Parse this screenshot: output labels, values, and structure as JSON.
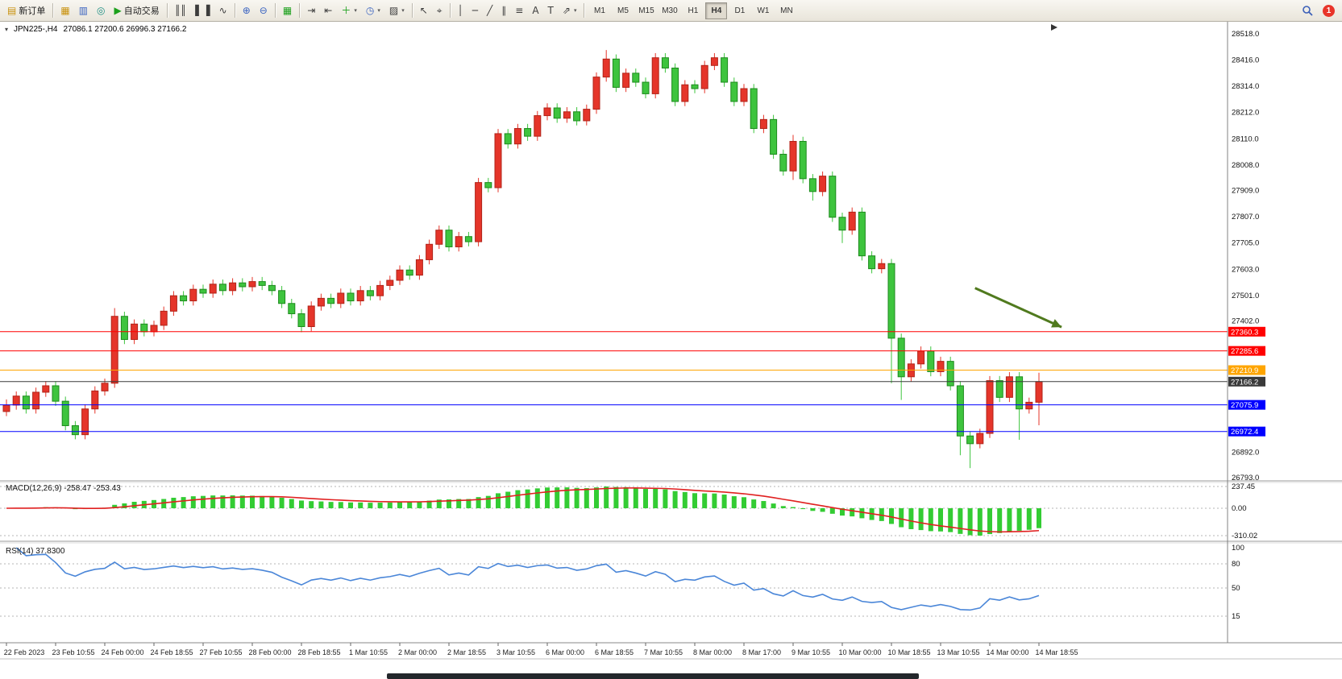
{
  "toolbar": {
    "new_order_label": "新订单",
    "autotrading_label": "自动交易",
    "timeframes": [
      "M1",
      "M5",
      "M15",
      "M30",
      "H1",
      "H4",
      "D1",
      "W1",
      "MN"
    ],
    "active_timeframe": "H4",
    "badge_count": "1",
    "icons": {
      "new_order": "▤",
      "market_watch": "▦",
      "data_window": "▥",
      "navigator": "◎",
      "autotrading_play": "▶",
      "chart_bars": "║║",
      "chart_candles": "▌▐",
      "chart_line": "∿",
      "zoom_in": "⊕",
      "zoom_out": "⊖",
      "tile_windows": "▦",
      "auto_scroll": "⇥",
      "chart_shift": "⇤",
      "add_indicator": "＋",
      "periods": "◷",
      "templates": "▨",
      "cursor": "↖",
      "crosshair": "⌖",
      "vline": "│",
      "hline": "─",
      "trendline": "╱",
      "channel": "∥",
      "fibonacci": "≡",
      "text": "A",
      "text_label": "T",
      "shapes": "⇗",
      "dropdown": "▾",
      "one_click": "▾"
    }
  },
  "chart": {
    "symbol_label": "JPN225-,H4",
    "ohlc_text": "27086.1 27200.6 26996.3 27166.2",
    "price_axis": {
      "top": 28518.0,
      "bottom": 26793.0,
      "labels": [
        "28518.0",
        "28416.0",
        "28314.0",
        "28212.0",
        "28110.0",
        "28008.0",
        "27909.0",
        "27807.0",
        "27705.0",
        "27603.0",
        "27501.0",
        "27402.0",
        "27300.0",
        "27198.0",
        "27096.0",
        "26994.0",
        "26892.0",
        "26793.0"
      ]
    },
    "colors": {
      "up": "#e5352a",
      "up_border": "#b02318",
      "down": "#3ec43e",
      "down_border": "#1d8a1d"
    },
    "levels": [
      {
        "price": 27360.3,
        "label": "27360.3",
        "color": "#ff0000"
      },
      {
        "price": 27285.6,
        "label": "27285.6",
        "color": "#ff0000"
      },
      {
        "price": 27210.9,
        "label": "27210.9",
        "color": "#ffa500"
      },
      {
        "price": 27166.2,
        "label": "27166.2",
        "color": "#3a3a3a"
      },
      {
        "price": 27075.9,
        "label": "27075.9",
        "color": "#0000ff"
      },
      {
        "price": 26972.4,
        "label": "26972.4",
        "color": "#0000ff"
      }
    ],
    "arrow": {
      "from_bar": 98.5,
      "from_price": 27530,
      "to_bar": 107.3,
      "to_price": 27378,
      "color": "#507a1e"
    },
    "candles": [
      [
        27050,
        27097,
        27032,
        27075
      ],
      [
        27075,
        27128,
        27057,
        27110
      ],
      [
        27110,
        27128,
        27042,
        27060
      ],
      [
        27060,
        27143,
        27042,
        27125
      ],
      [
        27125,
        27168,
        27107,
        27150
      ],
      [
        27150,
        27168,
        27072,
        27090
      ],
      [
        27090,
        27108,
        26977,
        26995
      ],
      [
        26995,
        27013,
        26942,
        26960
      ],
      [
        26960,
        27078,
        26942,
        27060
      ],
      [
        27060,
        27148,
        27042,
        27130
      ],
      [
        27130,
        27178,
        27112,
        27160
      ],
      [
        27160,
        27452,
        27142,
        27420
      ],
      [
        27420,
        27438,
        27312,
        27330
      ],
      [
        27330,
        27408,
        27312,
        27390
      ],
      [
        27390,
        27408,
        27342,
        27360
      ],
      [
        27360,
        27403,
        27342,
        27385
      ],
      [
        27385,
        27458,
        27367,
        27440
      ],
      [
        27440,
        27518,
        27422,
        27500
      ],
      [
        27500,
        27518,
        27462,
        27480
      ],
      [
        27480,
        27543,
        27462,
        27525
      ],
      [
        27525,
        27543,
        27492,
        27510
      ],
      [
        27510,
        27563,
        27492,
        27545
      ],
      [
        27545,
        27563,
        27502,
        27520
      ],
      [
        27520,
        27568,
        27502,
        27550
      ],
      [
        27550,
        27568,
        27517,
        27535
      ],
      [
        27535,
        27573,
        27517,
        27555
      ],
      [
        27555,
        27573,
        27522,
        27540
      ],
      [
        27540,
        27558,
        27502,
        27520
      ],
      [
        27520,
        27538,
        27452,
        27470
      ],
      [
        27470,
        27488,
        27412,
        27430
      ],
      [
        27430,
        27448,
        27358,
        27380
      ],
      [
        27380,
        27478,
        27362,
        27460
      ],
      [
        27460,
        27508,
        27442,
        27490
      ],
      [
        27490,
        27508,
        27452,
        27470
      ],
      [
        27470,
        27528,
        27452,
        27510
      ],
      [
        27510,
        27528,
        27462,
        27480
      ],
      [
        27480,
        27538,
        27462,
        27520
      ],
      [
        27520,
        27538,
        27482,
        27500
      ],
      [
        27500,
        27558,
        27482,
        27540
      ],
      [
        27540,
        27578,
        27522,
        27560
      ],
      [
        27560,
        27618,
        27542,
        27600
      ],
      [
        27600,
        27618,
        27562,
        27580
      ],
      [
        27580,
        27658,
        27562,
        27640
      ],
      [
        27640,
        27718,
        27622,
        27700
      ],
      [
        27700,
        27773,
        27682,
        27755
      ],
      [
        27755,
        27773,
        27672,
        27690
      ],
      [
        27690,
        27748,
        27672,
        27730
      ],
      [
        27730,
        27748,
        27692,
        27710
      ],
      [
        27710,
        27958,
        27692,
        27940
      ],
      [
        27940,
        27958,
        27902,
        27920
      ],
      [
        27920,
        28148,
        27902,
        28130
      ],
      [
        28130,
        28148,
        28072,
        28090
      ],
      [
        28090,
        28168,
        28072,
        28150
      ],
      [
        28150,
        28168,
        28102,
        28120
      ],
      [
        28120,
        28218,
        28102,
        28200
      ],
      [
        28200,
        28248,
        28182,
        28230
      ],
      [
        28230,
        28248,
        28172,
        28190
      ],
      [
        28190,
        28233,
        28172,
        28215
      ],
      [
        28215,
        28233,
        28162,
        28180
      ],
      [
        28180,
        28243,
        28162,
        28225
      ],
      [
        28225,
        28368,
        28207,
        28350
      ],
      [
        28350,
        28455,
        28332,
        28420
      ],
      [
        28420,
        28438,
        28292,
        28310
      ],
      [
        28310,
        28383,
        28292,
        28365
      ],
      [
        28365,
        28383,
        28312,
        28330
      ],
      [
        28330,
        28348,
        28267,
        28285
      ],
      [
        28285,
        28443,
        28267,
        28425
      ],
      [
        28425,
        28443,
        28367,
        28385
      ],
      [
        28385,
        28403,
        28237,
        28255
      ],
      [
        28255,
        28338,
        28237,
        28320
      ],
      [
        28320,
        28338,
        28287,
        28305
      ],
      [
        28305,
        28413,
        28287,
        28395
      ],
      [
        28395,
        28443,
        28377,
        28425
      ],
      [
        28425,
        28443,
        28312,
        28330
      ],
      [
        28330,
        28348,
        28237,
        28255
      ],
      [
        28255,
        28323,
        28237,
        28305
      ],
      [
        28305,
        28323,
        28132,
        28150
      ],
      [
        28150,
        28203,
        28132,
        28185
      ],
      [
        28185,
        28203,
        28032,
        28050
      ],
      [
        28050,
        28068,
        27967,
        27985
      ],
      [
        27985,
        28125,
        27950,
        28100
      ],
      [
        28100,
        28118,
        27937,
        27955
      ],
      [
        27955,
        27973,
        27870,
        27905
      ],
      [
        27905,
        27983,
        27887,
        27965
      ],
      [
        27965,
        27983,
        27787,
        27805
      ],
      [
        27805,
        27823,
        27705,
        27755
      ],
      [
        27755,
        27843,
        27737,
        27825
      ],
      [
        27825,
        27843,
        27637,
        27655
      ],
      [
        27655,
        27673,
        27587,
        27605
      ],
      [
        27605,
        27643,
        27587,
        27625
      ],
      [
        27625,
        27643,
        27160,
        27335
      ],
      [
        27335,
        27353,
        27095,
        27185
      ],
      [
        27185,
        27253,
        27167,
        27235
      ],
      [
        27235,
        27303,
        27217,
        27285
      ],
      [
        27285,
        27303,
        27187,
        27205
      ],
      [
        27205,
        27263,
        27187,
        27245
      ],
      [
        27245,
        27263,
        27132,
        27150
      ],
      [
        27150,
        27168,
        26880,
        26955
      ],
      [
        26955,
        26973,
        26830,
        26925
      ],
      [
        26925,
        26983,
        26907,
        26965
      ],
      [
        26965,
        27188,
        26947,
        27170
      ],
      [
        27170,
        27188,
        27087,
        27105
      ],
      [
        27105,
        27203,
        27087,
        27185
      ],
      [
        27185,
        27203,
        26940,
        27060
      ],
      [
        27060,
        27104,
        27042,
        27086
      ],
      [
        27086.1,
        27200.6,
        26996.3,
        27166.2
      ]
    ]
  },
  "macd": {
    "label": "MACD(12,26,9) -258.47 -253.43",
    "axis_labels": [
      "237.45",
      "0.00",
      "-310.02"
    ],
    "hist_color": "#33cc33",
    "signal_color": "#e02020"
  },
  "rsi": {
    "label": "RSI(14) 37.8300",
    "axis_labels": [
      "100",
      "80",
      "50",
      "15"
    ],
    "levels": [
      80,
      50,
      15
    ],
    "line_color": "#4a86d8"
  },
  "time_axis": {
    "labels": [
      "22 Feb 2023",
      "23 Feb 10:55",
      "24 Feb 00:00",
      "24 Feb 18:55",
      "27 Feb 10:55",
      "28 Feb 00:00",
      "28 Feb 18:55",
      "1 Mar 10:55",
      "2 Mar 00:00",
      "2 Mar 18:55",
      "3 Mar 10:55",
      "6 Mar 00:00",
      "6 Mar 18:55",
      "7 Mar 10:55",
      "8 Mar 00:00",
      "8 Mar 17:00",
      "9 Mar 10:55",
      "10 Mar 00:00",
      "10 Mar 18:55",
      "13 Mar 10:55",
      "14 Mar 00:00",
      "14 Mar 18:55"
    ]
  }
}
